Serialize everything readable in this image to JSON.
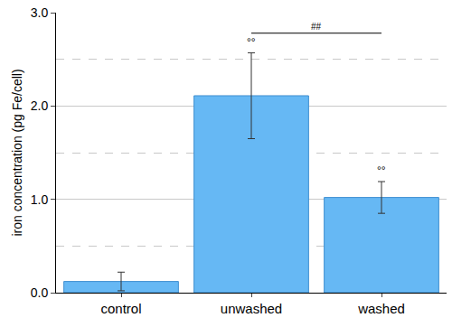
{
  "chart_data": {
    "type": "bar",
    "y_label": "iron concentration (pg Fe/cell)",
    "categories": [
      "control",
      "unwashed",
      "washed"
    ],
    "values": [
      0.12,
      2.11,
      1.02
    ],
    "errors": [
      0.1,
      0.46,
      0.17
    ],
    "color": "#66b8f4",
    "ylim": [
      0,
      3
    ],
    "yticks": [
      {
        "value": 0,
        "label": "0.0"
      },
      {
        "value": 1,
        "label": "1.0"
      },
      {
        "value": 2,
        "label": "2.0"
      },
      {
        "value": 3,
        "label": "3.0"
      }
    ],
    "grid": true,
    "annotations": [
      {
        "text": "°°",
        "x": "unwashed",
        "y": 2.68
      },
      {
        "text": "°°",
        "x": "washed",
        "y": 1.31
      },
      {
        "text": "##",
        "x": [
          "unwashed",
          "washed"
        ],
        "y": 2.78
      }
    ]
  }
}
